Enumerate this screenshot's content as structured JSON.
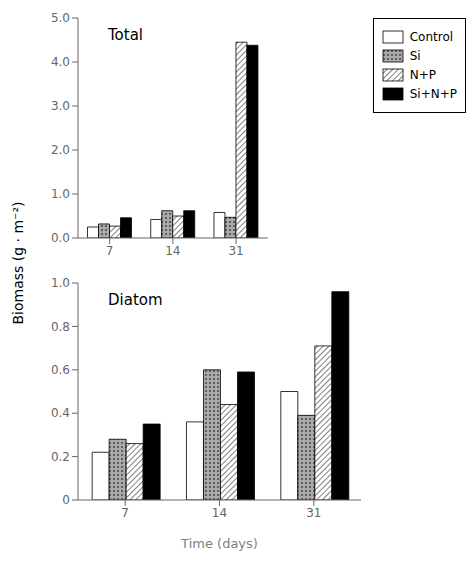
{
  "chart_data": [
    {
      "type": "bar",
      "title": "Total",
      "ylabel": "Biomass (g · m⁻²)",
      "legend": "right",
      "categories": [
        "7",
        "14",
        "31"
      ],
      "series": [
        {
          "name": "Control",
          "color": "#ffffff",
          "values": [
            0.25,
            0.42,
            0.58
          ]
        },
        {
          "name": "Si",
          "color": "#aaaaaa",
          "values": [
            0.32,
            0.62,
            0.47
          ]
        },
        {
          "name": "N+P",
          "color": "#ffffff",
          "values": [
            0.27,
            0.5,
            4.45
          ]
        },
        {
          "name": "Si+N+P",
          "color": "#000000",
          "values": [
            0.46,
            0.62,
            4.38
          ]
        }
      ],
      "ylim": [
        0,
        5.0
      ],
      "yticks": [
        {
          "value": 0,
          "label": "0.0"
        },
        {
          "value": 1,
          "label": "1.0"
        },
        {
          "value": 2,
          "label": "2.0"
        },
        {
          "value": 3,
          "label": "3.0"
        },
        {
          "value": 4,
          "label": "4.0"
        },
        {
          "value": 5,
          "label": "5.0"
        }
      ]
    },
    {
      "type": "bar",
      "title": "Diatom",
      "xlabel": "Time (days)",
      "categories": [
        "7",
        "14",
        "31"
      ],
      "series": [
        {
          "name": "Control",
          "color": "#ffffff",
          "values": [
            0.22,
            0.36,
            0.5
          ]
        },
        {
          "name": "Si",
          "color": "#aaaaaa",
          "values": [
            0.28,
            0.6,
            0.39
          ]
        },
        {
          "name": "N+P",
          "color": "#ffffff",
          "values": [
            0.26,
            0.44,
            0.71
          ]
        },
        {
          "name": "Si+N+P",
          "color": "#000000",
          "values": [
            0.35,
            0.59,
            0.96
          ]
        }
      ],
      "ylim": [
        0,
        1.0
      ],
      "yticks": [
        0,
        0.2,
        0.4,
        0.6,
        0.8,
        {
          "value": 1,
          "label": "1.0"
        }
      ]
    }
  ]
}
